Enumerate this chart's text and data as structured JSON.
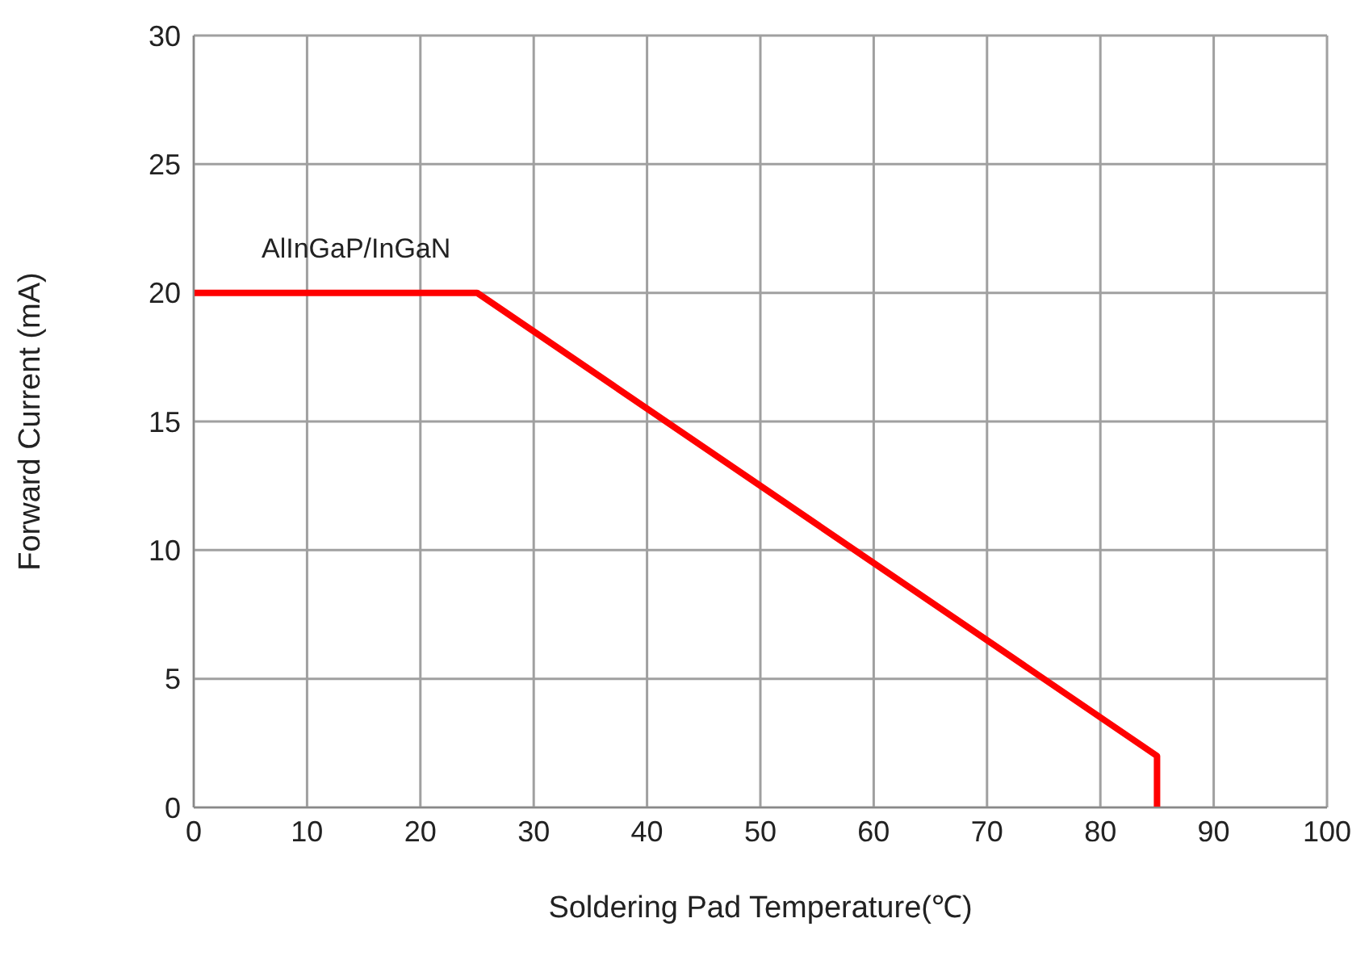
{
  "chart_data": {
    "type": "line",
    "xlabel": "Soldering Pad Temperature(℃)",
    "ylabel": "Forward Current (mA)",
    "series": [
      {
        "name": "AlInGaP/InGaN",
        "color": "#ff0000",
        "x": [
          0,
          25,
          85,
          85
        ],
        "values": [
          20,
          20,
          2,
          0
        ]
      }
    ],
    "xlim": [
      0,
      100
    ],
    "xticks": [
      0,
      10,
      20,
      30,
      40,
      50,
      60,
      70,
      80,
      90,
      100
    ],
    "ylim": [
      0,
      30
    ],
    "yticks": [
      0,
      5,
      10,
      15,
      20,
      25,
      30
    ],
    "grid": true,
    "legend": false,
    "marker": "none",
    "line_style": "solid"
  }
}
